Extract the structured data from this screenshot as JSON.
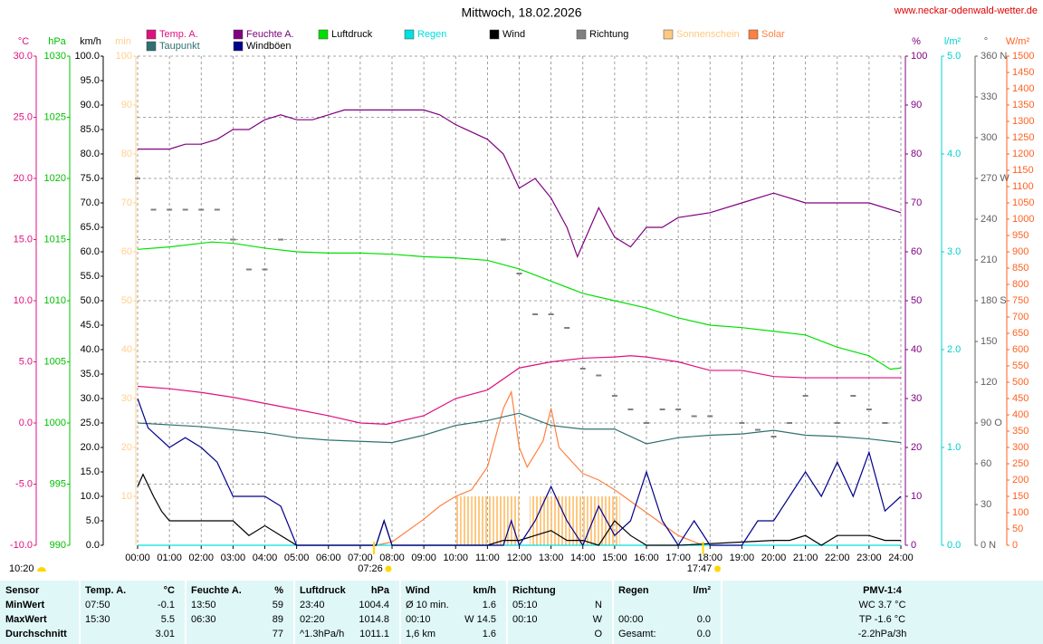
{
  "chart_data": {
    "type": "line",
    "title": "Mittwoch, 18.02.2026",
    "source": "www.neckar-odenwald-wetter.de",
    "xlim": [
      0,
      24
    ],
    "xticks": [
      {
        "value": 0,
        "label": "00:00"
      },
      {
        "value": 1,
        "label": "01:00"
      },
      {
        "value": 2,
        "label": "02:00"
      },
      {
        "value": 3,
        "label": "03:00"
      },
      {
        "value": 4,
        "label": "04:00"
      },
      {
        "value": 5,
        "label": "05:00"
      },
      {
        "value": 6,
        "label": "06:00"
      },
      {
        "value": 7,
        "label": "07:00"
      },
      {
        "value": 8,
        "label": "08:00"
      },
      {
        "value": 9,
        "label": "09:00"
      },
      {
        "value": 10,
        "label": "10:00"
      },
      {
        "value": 11,
        "label": "11:00"
      },
      {
        "value": 12,
        "label": "12:00"
      },
      {
        "value": 13,
        "label": "13:00"
      },
      {
        "value": 14,
        "label": "14:00"
      },
      {
        "value": 15,
        "label": "15:00"
      },
      {
        "value": 16,
        "label": "16:00"
      },
      {
        "value": 17,
        "label": "17:00"
      },
      {
        "value": 18,
        "label": "18:00"
      },
      {
        "value": 19,
        "label": "19:00"
      },
      {
        "value": 20,
        "label": "20:00"
      },
      {
        "value": 21,
        "label": "21:00"
      },
      {
        "value": 22,
        "label": "22:00"
      },
      {
        "value": 23,
        "label": "23:00"
      },
      {
        "value": 24,
        "label": "24:00"
      }
    ],
    "grid": true,
    "axes": {
      "temp": {
        "label": "°C",
        "color": "#e0107f",
        "lim": [
          -10,
          30
        ],
        "ticks": [
          {
            "value": 30,
            "label": "30.0"
          },
          {
            "value": 25,
            "label": "25.0"
          },
          {
            "value": 20,
            "label": "20.0"
          },
          {
            "value": 15,
            "label": "15.0"
          },
          {
            "value": 10,
            "label": "10.0"
          },
          {
            "value": 5,
            "label": "5.0"
          },
          {
            "value": 0,
            "label": "0.0"
          },
          {
            "value": -5,
            "label": "-5.0"
          },
          {
            "value": -10,
            "label": "-10.0"
          }
        ]
      },
      "pressure": {
        "label": "hPa",
        "color": "#00c000",
        "lim": [
          990,
          1030
        ],
        "ticks": [
          1030,
          1025,
          1020,
          1015,
          1010,
          1005,
          1000,
          995,
          990
        ]
      },
      "wind": {
        "label": "km/h",
        "color": "#000000",
        "lim": [
          0,
          100
        ],
        "ticks": [
          {
            "value": 100,
            "label": "100.0"
          },
          {
            "value": 95,
            "label": "95.0"
          },
          {
            "value": 90,
            "label": "90.0"
          },
          {
            "value": 85,
            "label": "85.0"
          },
          {
            "value": 80,
            "label": "80.0"
          },
          {
            "value": 75,
            "label": "75.0"
          },
          {
            "value": 70,
            "label": "70.0"
          },
          {
            "value": 65,
            "label": "65.0"
          },
          {
            "value": 60,
            "label": "60.0"
          },
          {
            "value": 55,
            "label": "55.0"
          },
          {
            "value": 50,
            "label": "50.0"
          },
          {
            "value": 45,
            "label": "45.0"
          },
          {
            "value": 40,
            "label": "40.0"
          },
          {
            "value": 35,
            "label": "35.0"
          },
          {
            "value": 30,
            "label": "30.0"
          },
          {
            "value": 25,
            "label": "25.0"
          },
          {
            "value": 20,
            "label": "20.0"
          },
          {
            "value": 15,
            "label": "15.0"
          },
          {
            "value": 10,
            "label": "10.0"
          },
          {
            "value": 5,
            "label": "5.0"
          },
          {
            "value": 0,
            "label": "0.0"
          }
        ]
      },
      "sun": {
        "label": "min",
        "color": "#ffd090",
        "lim": [
          0,
          100
        ],
        "ticks": [
          100,
          90,
          80,
          70,
          60,
          50,
          40,
          30,
          20,
          10
        ]
      },
      "hum": {
        "label": "%",
        "color": "#800080",
        "lim": [
          0,
          100
        ],
        "ticks": [
          100,
          90,
          80,
          70,
          60,
          50,
          40,
          30,
          20,
          10,
          0
        ]
      },
      "rain": {
        "label": "l/m²",
        "color": "#00d0d0",
        "lim": [
          0,
          5
        ],
        "ticks": [
          {
            "value": 5,
            "label": "5.0"
          },
          {
            "value": 4,
            "label": "4.0"
          },
          {
            "value": 3,
            "label": "3.0"
          },
          {
            "value": 2,
            "label": "2.0"
          },
          {
            "value": 1,
            "label": "1.0"
          },
          {
            "value": 0,
            "label": "0.0"
          }
        ]
      },
      "dir": {
        "label": "°",
        "color": "#606060",
        "lim": [
          0,
          360
        ],
        "ticks": [
          {
            "value": 360,
            "label": "360 N"
          },
          330,
          300,
          {
            "value": 270,
            "label": "270 W"
          },
          240,
          210,
          {
            "value": 180,
            "label": "180 S"
          },
          150,
          120,
          {
            "value": 90,
            "label": "90 O"
          },
          60,
          30,
          {
            "value": 0,
            "label": "0 N"
          }
        ]
      },
      "solar": {
        "label": "W/m²",
        "color": "#ff6020",
        "lim": [
          0,
          1500
        ],
        "ticks": [
          1500,
          1450,
          1400,
          1350,
          1300,
          1250,
          1200,
          1150,
          1100,
          1050,
          1000,
          950,
          900,
          850,
          800,
          750,
          700,
          650,
          600,
          550,
          500,
          450,
          400,
          350,
          300,
          250,
          200,
          150,
          100,
          50,
          0
        ]
      }
    },
    "series": [
      {
        "name": "Temp. A.",
        "color": "#e0107f",
        "axis": "temp",
        "type": "line",
        "x": [
          0,
          1,
          2,
          3,
          4,
          5,
          6,
          7,
          7.83,
          8,
          9,
          10,
          11,
          12,
          13,
          14,
          15,
          15.5,
          16,
          17,
          18,
          19,
          20,
          21,
          22,
          23,
          24
        ],
        "values": [
          3.0,
          2.8,
          2.5,
          2.1,
          1.6,
          1.1,
          0.6,
          0.0,
          -0.1,
          0.0,
          0.6,
          2.0,
          2.7,
          4.5,
          5.0,
          5.3,
          5.4,
          5.5,
          5.4,
          5.0,
          4.3,
          4.3,
          3.8,
          3.7,
          3.7,
          3.7,
          3.7
        ]
      },
      {
        "name": "Taupunkt",
        "color": "#2f7070",
        "axis": "temp",
        "type": "line",
        "x": [
          0,
          2,
          4,
          5,
          6,
          7,
          8,
          9,
          10,
          11,
          12,
          13,
          14,
          15,
          16,
          17,
          18,
          19,
          20,
          21,
          22,
          23,
          24
        ],
        "values": [
          0.0,
          -0.3,
          -0.8,
          -1.2,
          -1.4,
          -1.5,
          -1.6,
          -1.0,
          -0.2,
          0.2,
          0.8,
          -0.2,
          -0.5,
          -0.5,
          -1.7,
          -1.2,
          -1.0,
          -0.9,
          -0.6,
          -1.0,
          -1.1,
          -1.3,
          -1.6
        ]
      },
      {
        "name": "Feuchte A.",
        "color": "#800080",
        "axis": "hum",
        "type": "line",
        "x": [
          0,
          1,
          1.5,
          2,
          2.5,
          3,
          3.5,
          4,
          4.5,
          5,
          5.5,
          6,
          6.5,
          7,
          8,
          9,
          9.5,
          10,
          11,
          11.5,
          12,
          12.5,
          13,
          13.5,
          13.83,
          14.5,
          15,
          15.5,
          16,
          16.5,
          17,
          18,
          19,
          20,
          21,
          22,
          23,
          24
        ],
        "values": [
          81,
          81,
          82,
          82,
          83,
          85,
          85,
          87,
          88,
          87,
          87,
          88,
          89,
          89,
          89,
          89,
          88,
          86,
          83,
          80,
          73,
          75,
          71,
          65,
          59,
          69,
          63,
          61,
          65,
          65,
          67,
          68,
          70,
          72,
          70,
          70,
          70,
          68
        ]
      },
      {
        "name": "Windböen",
        "color": "#00008b",
        "axis": "wind",
        "type": "line",
        "x": [
          0,
          0.33,
          1,
          1.5,
          2,
          2.5,
          3,
          3.5,
          4,
          4.5,
          5,
          7.5,
          7.75,
          8,
          11.5,
          11.75,
          12,
          12.5,
          13,
          13.5,
          14,
          14.5,
          15,
          15.5,
          16,
          16.5,
          17,
          17.5,
          18,
          19,
          19.5,
          20,
          21,
          21.5,
          22,
          22.5,
          23,
          23.5,
          24
        ],
        "values": [
          30,
          24,
          20,
          22,
          20,
          17,
          10,
          10,
          10,
          8,
          0,
          0,
          5,
          0,
          0,
          5,
          0,
          5,
          12,
          5,
          0,
          8,
          2,
          5,
          15,
          5,
          0,
          5,
          0,
          0,
          5,
          5,
          15,
          10,
          17,
          10,
          19,
          7,
          10
        ]
      },
      {
        "name": "Luftdruck",
        "color": "#00e000",
        "axis": "pressure",
        "type": "line",
        "x": [
          0,
          1,
          2,
          2.33,
          3,
          4,
          5,
          6,
          7,
          8,
          9,
          10,
          11,
          12,
          13,
          14,
          15,
          16,
          17,
          18,
          19,
          20,
          21,
          22,
          23,
          23.67,
          24
        ],
        "values": [
          1014.2,
          1014.4,
          1014.7,
          1014.8,
          1014.7,
          1014.3,
          1014.0,
          1013.9,
          1013.9,
          1013.8,
          1013.6,
          1013.5,
          1013.3,
          1012.6,
          1011.6,
          1010.6,
          1010.0,
          1009.4,
          1008.6,
          1008.0,
          1007.8,
          1007.5,
          1007.2,
          1006.2,
          1005.5,
          1004.4,
          1004.5
        ]
      },
      {
        "name": "Regen",
        "color": "#00e0e0",
        "axis": "rain",
        "type": "line",
        "x": [
          0,
          24
        ],
        "values": [
          0,
          0
        ]
      },
      {
        "name": "Wind",
        "color": "#000000",
        "axis": "wind",
        "type": "line",
        "x": [
          0,
          0.17,
          0.5,
          0.75,
          1,
          1.5,
          2,
          2.5,
          3,
          3.5,
          4,
          4.5,
          5,
          7.5,
          7.75,
          8,
          11,
          11.5,
          12,
          12.5,
          13,
          13.5,
          14,
          14.5,
          15,
          15.5,
          16,
          17,
          20,
          20.5,
          21,
          21.5,
          22,
          22.5,
          23,
          23.5,
          24
        ],
        "values": [
          12,
          14.5,
          10,
          7,
          5,
          5,
          5,
          5,
          5,
          2,
          4,
          2,
          0,
          0,
          5,
          0,
          0,
          1,
          1,
          2,
          3,
          1,
          1,
          0,
          5,
          2,
          0,
          0,
          1,
          1,
          2,
          0,
          2,
          2,
          2,
          1,
          1
        ]
      },
      {
        "name": "Richtung",
        "color": "#808080",
        "axis": "dir",
        "type": "dots",
        "x": [
          0,
          0.5,
          1,
          1.5,
          2,
          2.5,
          3,
          3.5,
          4,
          4.5,
          11.5,
          12,
          12.5,
          13,
          13.5,
          14,
          14.5,
          15,
          15.5,
          16,
          16.5,
          17,
          17.5,
          18,
          19,
          19.5,
          20,
          20.5,
          21,
          22,
          22.5,
          23,
          23.5
        ],
        "values": [
          270,
          247,
          247,
          247,
          247,
          247,
          225,
          203,
          203,
          225,
          225,
          200,
          170,
          170,
          160,
          130,
          125,
          110,
          100,
          90,
          100,
          100,
          95,
          95,
          90,
          85,
          80,
          90,
          110,
          90,
          110,
          100,
          90
        ]
      },
      {
        "name": "Sonnenschein",
        "color": "#ffc880",
        "axis": "sun",
        "type": "bar",
        "x": [
          10,
          10.17,
          10.33,
          10.5,
          10.67,
          10.83,
          11,
          11.17,
          11.33,
          11.5,
          11.67,
          11.83,
          12.33,
          12.5,
          12.67,
          12.83,
          13,
          13.17,
          13.33,
          13.5,
          13.67,
          13.83,
          14,
          14.17,
          14.33,
          14.5,
          14.67,
          14.83,
          15
        ],
        "values": [
          10,
          10,
          10,
          10,
          10,
          10,
          10,
          10,
          10,
          10,
          10,
          10,
          10,
          10,
          10,
          10,
          10,
          10,
          10,
          10,
          10,
          10,
          10,
          10,
          10,
          10,
          10,
          10,
          10
        ]
      },
      {
        "name": "Solar",
        "color": "#ff8040",
        "axis": "solar",
        "type": "line",
        "x": [
          7.5,
          8,
          9,
          9.5,
          10,
          10.5,
          11,
          11.5,
          11.75,
          12,
          12.25,
          12.75,
          13,
          13.25,
          14,
          14.5,
          15,
          16,
          17,
          17.78
        ],
        "values": [
          0,
          10,
          80,
          120,
          150,
          170,
          240,
          420,
          470,
          300,
          240,
          320,
          420,
          300,
          220,
          200,
          170,
          100,
          30,
          0
        ]
      }
    ],
    "moon_label": "10:20",
    "sun_events": [
      {
        "value": 7.43,
        "label": "07:26"
      },
      {
        "value": 17.78,
        "label": "17:47"
      }
    ]
  },
  "table": {
    "header": [
      [
        "Sensor"
      ],
      [
        "Temp. A.",
        "°C"
      ],
      [
        "Feuchte A.",
        "%"
      ],
      [
        "Luftdruck",
        "hPa"
      ],
      [
        "Wind",
        "km/h"
      ],
      [
        "Richtung"
      ],
      [
        "Regen",
        "l/m²"
      ],
      [
        "PMV-1:4"
      ]
    ],
    "rows": [
      [
        [
          "MinWert"
        ],
        [
          "07:50",
          "-0.1"
        ],
        [
          "13:50",
          "59"
        ],
        [
          "23:40",
          "1004.4"
        ],
        [
          "Ø 10 min.",
          "1.6"
        ],
        [
          "05:10",
          "N"
        ],
        [],
        [
          "WC 3.7 °C"
        ]
      ],
      [
        [
          "MaxWert"
        ],
        [
          "15:30",
          "5.5"
        ],
        [
          "06:30",
          "89"
        ],
        [
          "02:20",
          "1014.8"
        ],
        [
          "00:10",
          "W 14.5"
        ],
        [
          "00:10",
          "W"
        ],
        [
          "00:00",
          "0.0"
        ],
        [
          "TP -1.6 °C"
        ]
      ],
      [
        [
          "Durchschnitt"
        ],
        [
          "3.01"
        ],
        [
          "77"
        ],
        [
          "^1.3hPa/h",
          "1011.1"
        ],
        [
          "1,6 km",
          "1.6"
        ],
        [
          "O"
        ],
        [
          "Gesamt:",
          "0.0"
        ],
        [
          "-2.2hPa/3h"
        ]
      ]
    ]
  }
}
